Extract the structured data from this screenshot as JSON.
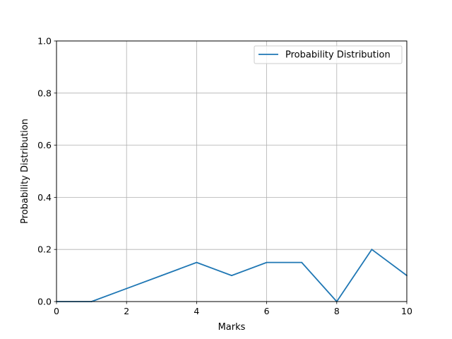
{
  "chart_data": {
    "type": "line",
    "xlabel": "Marks",
    "ylabel": "Probability Distribution",
    "xlim": [
      0,
      10
    ],
    "ylim": [
      0,
      1.0
    ],
    "xticks": [
      "0",
      "2",
      "4",
      "6",
      "8",
      "10"
    ],
    "yticks": [
      "0.0",
      "0.2",
      "0.4",
      "0.6",
      "0.8",
      "1.0"
    ],
    "grid": true,
    "legend_position": "top-right",
    "series": [
      {
        "name": "Probability Distribution",
        "color": "#1f77b4",
        "x": [
          0,
          1,
          2,
          3,
          4,
          5,
          6,
          7,
          8,
          9,
          10
        ],
        "y": [
          0.0,
          0.0,
          0.05,
          0.1,
          0.15,
          0.1,
          0.15,
          0.15,
          0.0,
          0.2,
          0.1
        ]
      }
    ]
  }
}
